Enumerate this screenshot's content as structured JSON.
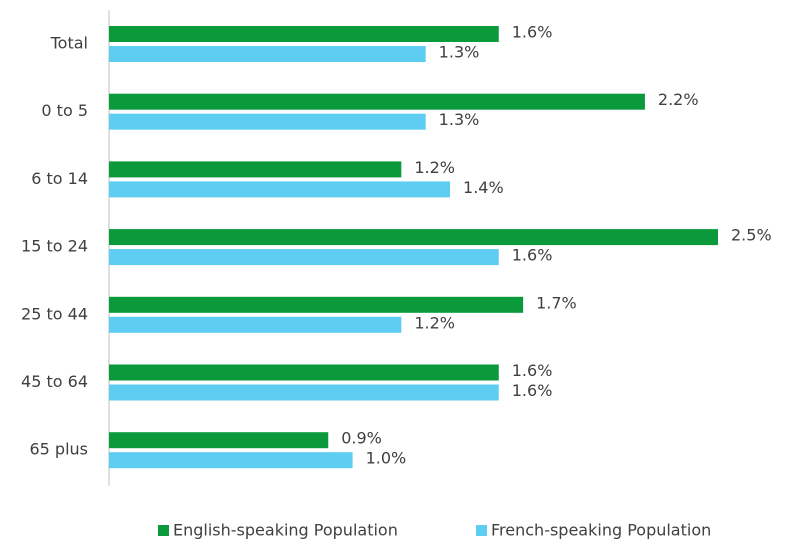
{
  "chart_data": {
    "type": "hbar",
    "categories": [
      "Total",
      "0 to 5",
      "6 to 14",
      "15 to 24",
      "25 to 44",
      "45 to 64",
      "65 plus"
    ],
    "series": [
      {
        "name": "English-speaking Population",
        "color": "#0a9a3c",
        "values": [
          1.6,
          2.2,
          1.2,
          2.5,
          1.7,
          1.6,
          0.9
        ],
        "value_labels": [
          "1.6%",
          "2.2%",
          "1.2%",
          "2.5%",
          "1.7%",
          "1.6%",
          "0.9%"
        ]
      },
      {
        "name": "French-speaking Population",
        "color": "#5dcdf2",
        "values": [
          1.3,
          1.3,
          1.4,
          1.6,
          1.2,
          1.6,
          1.0
        ],
        "value_labels": [
          "1.3%",
          "1.3%",
          "1.4%",
          "1.6%",
          "1.2%",
          "1.6%",
          "1.0%"
        ]
      }
    ],
    "legend": "bottom"
  }
}
